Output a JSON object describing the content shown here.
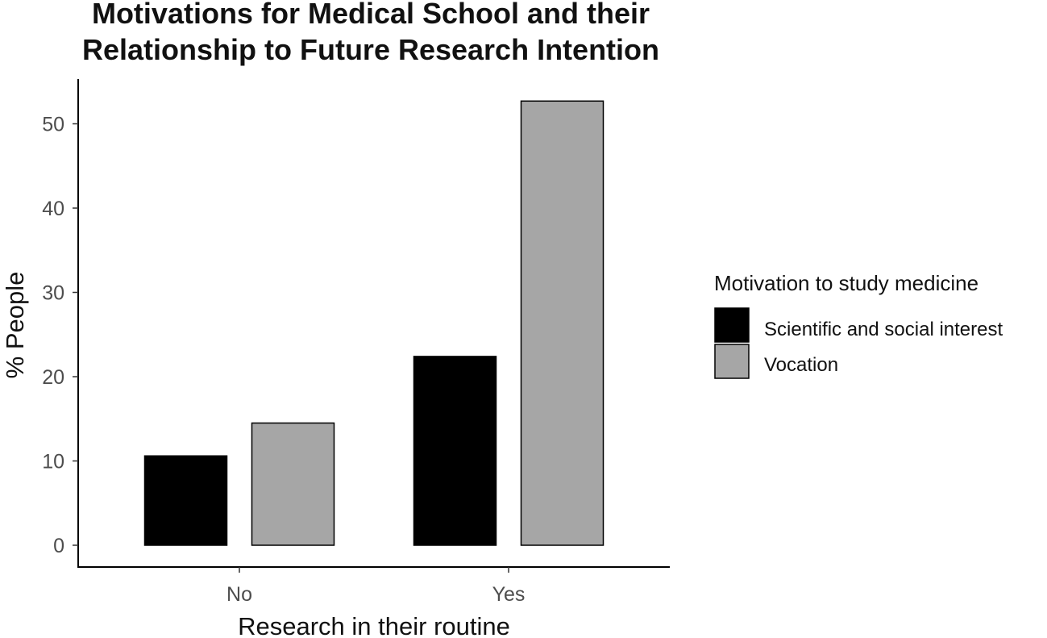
{
  "chart_data": {
    "type": "bar",
    "title_lines": [
      "Motivations for Medical School and their",
      "Relationship to Future Research Intention"
    ],
    "xlabel": "Research in their routine",
    "ylabel": "% People",
    "categories": [
      "No",
      "Yes"
    ],
    "series": [
      {
        "name": "Scientific and social interest",
        "values": [
          10.6,
          22.4
        ],
        "color": "#000000"
      },
      {
        "name": "Vocation",
        "values": [
          14.5,
          52.7
        ],
        "color": "#a6a6a6"
      }
    ],
    "ylim": [
      0,
      55
    ],
    "yticks": [
      0,
      10,
      20,
      30,
      40,
      50
    ],
    "grid": false,
    "legend": {
      "title": "Motivation to study medicine",
      "position": "right"
    }
  }
}
